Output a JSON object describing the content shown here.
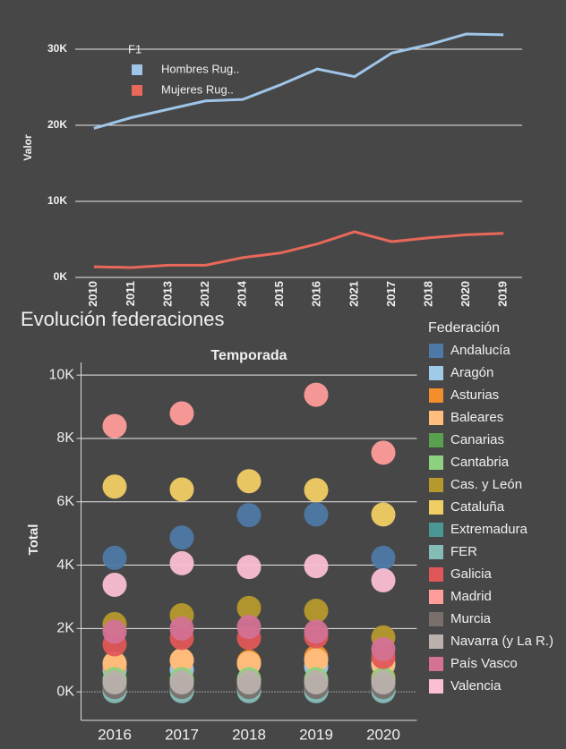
{
  "chart_data": [
    {
      "type": "line",
      "ylabel": "Valor",
      "legend_title": "F1",
      "categories": [
        "2010",
        "2011",
        "2013",
        "2012",
        "2014",
        "2015",
        "2016",
        "2021",
        "2017",
        "2018",
        "2020",
        "2019"
      ],
      "series": [
        {
          "name": "Hombres Rug..",
          "color": "#9fc5e8",
          "values": [
            19600,
            21000,
            22100,
            23200,
            23400,
            25300,
            27400,
            26400,
            29500,
            30600,
            32000,
            31900
          ]
        },
        {
          "name": "Mujeres  Rug..",
          "color": "#e8685a",
          "values": [
            1400,
            1300,
            1600,
            1600,
            2600,
            3200,
            4400,
            6000,
            4700,
            5200,
            5600,
            5800
          ]
        }
      ],
      "ylim": [
        0,
        33000
      ],
      "yticks": [
        {
          "value": 0,
          "label": "0K"
        },
        {
          "value": 10000,
          "label": "10K"
        },
        {
          "value": 20000,
          "label": "20K"
        },
        {
          "value": 30000,
          "label": "30K"
        }
      ],
      "grid": true
    },
    {
      "type": "scatter",
      "title": "Evolución federaciones",
      "xlabel": "Temporada",
      "ylabel": "Total",
      "legend_title": "Federación",
      "categories": [
        "2016",
        "2017",
        "2018",
        "2019",
        "2020"
      ],
      "series": [
        {
          "name": "Andalucía",
          "color": "#4e79a7",
          "values": [
            4230,
            4870,
            5580,
            5600,
            4230
          ]
        },
        {
          "name": "Aragón",
          "color": "#a0cbe8",
          "values": [
            700,
            700,
            900,
            800,
            850
          ]
        },
        {
          "name": "Asturias",
          "color": "#f28e2b",
          "values": [
            850,
            1000,
            950,
            1100,
            450
          ]
        },
        {
          "name": "Baleares",
          "color": "#ffbe7d",
          "values": [
            900,
            1000,
            900,
            1000,
            900
          ]
        },
        {
          "name": "Canarias",
          "color": "#59a14f",
          "values": [
            230,
            200,
            250,
            250,
            200
          ]
        },
        {
          "name": "Cantabria",
          "color": "#8cd17d",
          "values": [
            400,
            400,
            400,
            400,
            400
          ]
        },
        {
          "name": "Cas. y León",
          "color": "#b6992d",
          "values": [
            2140,
            2420,
            2650,
            2560,
            1720
          ]
        },
        {
          "name": "Cataluña",
          "color": "#f1ce63",
          "values": [
            6480,
            6390,
            6650,
            6370,
            5600
          ]
        },
        {
          "name": "Extremadura",
          "color": "#499894",
          "values": [
            100,
            100,
            100,
            100,
            100
          ]
        },
        {
          "name": "FER",
          "color": "#86bcb6",
          "values": [
            20,
            20,
            20,
            20,
            20
          ]
        },
        {
          "name": "Galicia",
          "color": "#e15759",
          "values": [
            1500,
            1700,
            1700,
            1750,
            1100
          ]
        },
        {
          "name": "Madrid",
          "color": "#ff9d9a",
          "values": [
            8390,
            8790,
            null,
            9380,
            7550
          ]
        },
        {
          "name": "Murcia",
          "color": "#79706e",
          "values": [
            150,
            150,
            150,
            150,
            150
          ]
        },
        {
          "name": "Navarra (y La R.)",
          "color": "#bab0ac",
          "values": [
            300,
            300,
            300,
            300,
            300
          ]
        },
        {
          "name": "País Vasco",
          "color": "#d37295",
          "values": [
            1900,
            2000,
            2050,
            1900,
            1350
          ]
        },
        {
          "name": "Valencia",
          "color": "#fabfd2",
          "values": [
            3380,
            4060,
            3940,
            3970,
            3520
          ]
        }
      ],
      "ylim": [
        -900,
        10400
      ],
      "yticks": [
        {
          "value": 0,
          "label": "0K"
        },
        {
          "value": 2000,
          "label": "2K"
        },
        {
          "value": 4000,
          "label": "4K"
        },
        {
          "value": 6000,
          "label": "6K"
        },
        {
          "value": 8000,
          "label": "8K"
        },
        {
          "value": 10000,
          "label": "10K"
        }
      ],
      "grid": true
    }
  ]
}
